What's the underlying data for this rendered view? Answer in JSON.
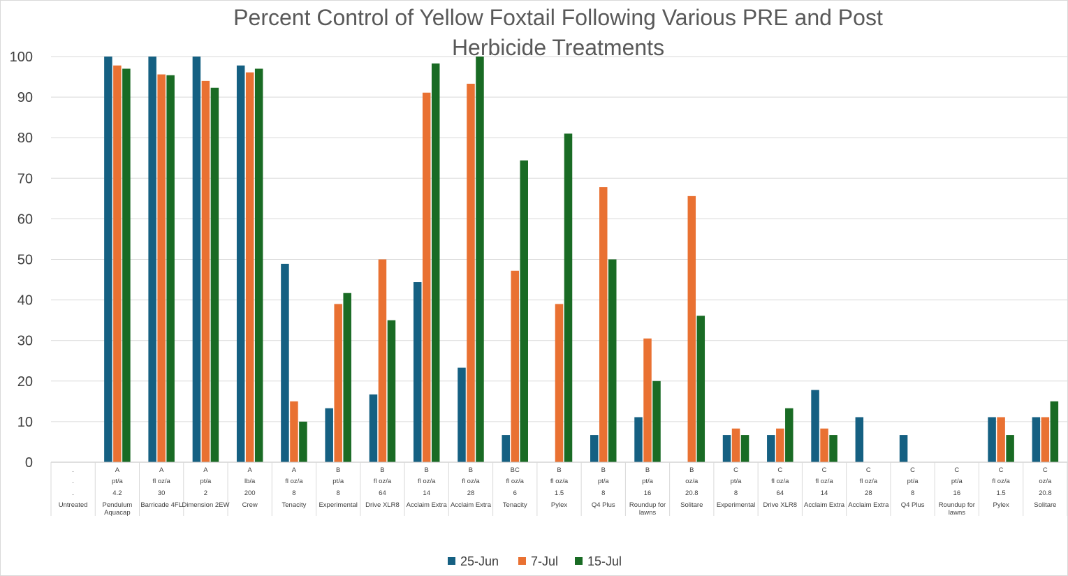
{
  "chart_data": {
    "type": "bar",
    "title_lines": [
      "Percent Control of Yellow Foxtail Following Various PRE and Post",
      "Herbicide Treatments"
    ],
    "ylim": [
      0,
      100
    ],
    "yticks": [
      0,
      10,
      20,
      30,
      40,
      50,
      60,
      70,
      80,
      90,
      100
    ],
    "grid": true,
    "legend_position": "bottom",
    "category_rows": [
      [
        ".",
        "A",
        "A",
        "A",
        "A",
        "A",
        "B",
        "B",
        "B",
        "B",
        "BC",
        "B",
        "B",
        "B",
        "B",
        "C",
        "C",
        "C",
        "C",
        "C",
        "C",
        "C",
        "C"
      ],
      [
        ".",
        "pt/a",
        "fl oz/a",
        "pt/a",
        "lb/a",
        "fl oz/a",
        "pt/a",
        "fl oz/a",
        "fl oz/a",
        "fl oz/a",
        "fl oz/a",
        "fl oz/a",
        "pt/a",
        "pt/a",
        "oz/a",
        "pt/a",
        "fl oz/a",
        "fl oz/a",
        "fl oz/a",
        "pt/a",
        "pt/a",
        "fl oz/a",
        "oz/a"
      ],
      [
        ".",
        "4.2",
        "30",
        "2",
        "200",
        "8",
        "8",
        "64",
        "14",
        "28",
        "6",
        "1.5",
        "8",
        "16",
        "20.8",
        "8",
        "64",
        "14",
        "28",
        "8",
        "16",
        "1.5",
        "20.8"
      ],
      [
        "Untreated",
        "Pendulum Aquacap",
        "Barricade 4FL",
        "Dimension 2EW",
        "Crew",
        "Tenacity",
        "Experimental",
        "Drive XLR8",
        "Acclaim Extra",
        "Acclaim Extra",
        "Tenacity",
        "Pylex",
        "Q4 Plus",
        "Roundup for lawns",
        "Solitare",
        "Experimental",
        "Drive XLR8",
        "Acclaim Extra",
        "Acclaim Extra",
        "Q4 Plus",
        "Roundup for lawns",
        "Pylex",
        "Solitare"
      ]
    ],
    "series": [
      {
        "name": "25-Jun",
        "color": "#156082",
        "values": [
          0,
          100,
          100,
          100,
          97.8,
          48.9,
          13.3,
          16.7,
          44.4,
          23.3,
          6.7,
          0,
          6.7,
          11.1,
          0,
          6.7,
          6.7,
          17.8,
          11.1,
          6.7,
          0,
          11.1,
          11.1
        ]
      },
      {
        "name": "7-Jul",
        "color": "#E97132",
        "values": [
          0,
          97.8,
          95.6,
          94,
          96.1,
          15,
          39,
          50,
          91.1,
          93.3,
          47.2,
          39,
          67.8,
          30.5,
          65.6,
          8.3,
          8.3,
          8.3,
          0,
          0,
          0,
          11.1,
          11.1
        ]
      },
      {
        "name": "15-Jul",
        "color": "#196B24",
        "values": [
          0,
          97,
          95.4,
          92.3,
          97,
          10,
          41.7,
          35,
          98.3,
          100,
          74.4,
          81,
          50,
          20,
          36.1,
          6.7,
          13.3,
          6.7,
          0,
          0,
          0,
          6.7,
          15
        ]
      }
    ]
  }
}
